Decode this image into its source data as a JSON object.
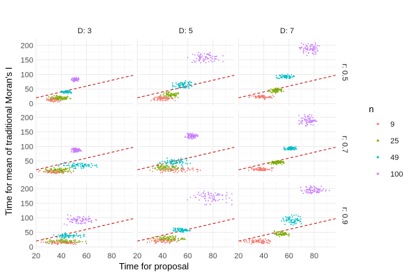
{
  "chart_data": {
    "type": "scatter",
    "title": "",
    "xlabel": "Time for proposal",
    "ylabel": "Time for mean of traditional Moran's I",
    "xlim": [
      20,
      97
    ],
    "ylim": [
      -8,
      222
    ],
    "x_ticks": [
      "20",
      "40",
      "60",
      "80"
    ],
    "y_ticks": [
      "0",
      "50",
      "100",
      "150",
      "200"
    ],
    "grid": true,
    "facet_cols": [
      "D: 3",
      "D: 5",
      "D: 7"
    ],
    "facet_rows": [
      "r: 0.5",
      "r: 0.7",
      "r: 0.9"
    ],
    "reference_line": {
      "style": "dashed",
      "color": "#cc0000",
      "intercept": 0,
      "slope": 1
    },
    "legend": {
      "title": "n",
      "position": "right",
      "entries": [
        {
          "label": "9",
          "color": "#f8766d"
        },
        {
          "label": "25",
          "color": "#7cae00"
        },
        {
          "label": "49",
          "color": "#00bfc4"
        },
        {
          "label": "100",
          "color": "#c77cff"
        }
      ]
    },
    "panels": [
      {
        "strip": "D: 3",
        "row_strip": "r: 0.5",
        "clusters": [
          {
            "n": "9",
            "x": [
              28,
              42
            ],
            "y": [
              5,
              22
            ]
          },
          {
            "n": "25",
            "x": [
              30,
              48
            ],
            "y": [
              10,
              28
            ]
          },
          {
            "n": "49",
            "x": [
              40,
              48
            ],
            "y": [
              35,
              45
            ]
          },
          {
            "n": "100",
            "x": [
              48,
              54
            ],
            "y": [
              75,
              90
            ]
          }
        ]
      },
      {
        "strip": "D: 5",
        "row_strip": "r: 0.5",
        "clusters": [
          {
            "n": "9",
            "x": [
              30,
              50
            ],
            "y": [
              10,
              25
            ]
          },
          {
            "n": "25",
            "x": [
              38,
              55
            ],
            "y": [
              18,
              40
            ]
          },
          {
            "n": "49",
            "x": [
              48,
              66
            ],
            "y": [
              50,
              78
            ]
          },
          {
            "n": "100",
            "x": [
              60,
              88
            ],
            "y": [
              140,
              175
            ]
          }
        ]
      },
      {
        "strip": "D: 7",
        "row_strip": "r: 0.5",
        "clusters": [
          {
            "n": "9",
            "x": [
              28,
              48
            ],
            "y": [
              15,
              30
            ]
          },
          {
            "n": "25",
            "x": [
              44,
              56
            ],
            "y": [
              35,
              55
            ]
          },
          {
            "n": "49",
            "x": [
              50,
              64
            ],
            "y": [
              85,
              100
            ]
          },
          {
            "n": "100",
            "x": [
              68,
              84
            ],
            "y": [
              165,
              210
            ]
          }
        ]
      },
      {
        "strip": "D: 3",
        "row_strip": "r: 0.7",
        "clusters": [
          {
            "n": "9",
            "x": [
              22,
              48
            ],
            "y": [
              5,
              20
            ]
          },
          {
            "n": "25",
            "x": [
              26,
              50
            ],
            "y": [
              10,
              28
            ]
          },
          {
            "n": "49",
            "x": [
              38,
              72
            ],
            "y": [
              25,
              45
            ]
          },
          {
            "n": "100",
            "x": [
              48,
              56
            ],
            "y": [
              80,
              95
            ]
          }
        ]
      },
      {
        "strip": "D: 5",
        "row_strip": "r: 0.7",
        "clusters": [
          {
            "n": "9",
            "x": [
              30,
              70
            ],
            "y": [
              10,
              30
            ]
          },
          {
            "n": "25",
            "x": [
              30,
              55
            ],
            "y": [
              15,
              40
            ]
          },
          {
            "n": "49",
            "x": [
              38,
              62
            ],
            "y": [
              30,
              60
            ]
          },
          {
            "n": "100",
            "x": [
              58,
              68
            ],
            "y": [
              125,
              145
            ]
          }
        ]
      },
      {
        "strip": "D: 7",
        "row_strip": "r: 0.7",
        "clusters": [
          {
            "n": "9",
            "x": [
              28,
              48
            ],
            "y": [
              15,
              30
            ]
          },
          {
            "n": "25",
            "x": [
              44,
              56
            ],
            "y": [
              38,
              52
            ]
          },
          {
            "n": "49",
            "x": [
              56,
              66
            ],
            "y": [
              85,
              100
            ]
          },
          {
            "n": "100",
            "x": [
              68,
              82
            ],
            "y": [
              170,
              210
            ]
          }
        ]
      },
      {
        "strip": "D: 3",
        "row_strip": "r: 0.9",
        "clusters": [
          {
            "n": "9",
            "x": [
              24,
              58
            ],
            "y": [
              8,
              22
            ]
          },
          {
            "n": "25",
            "x": [
              26,
              60
            ],
            "y": [
              12,
              28
            ]
          },
          {
            "n": "49",
            "x": [
              34,
              58
            ],
            "y": [
              30,
              48
            ]
          },
          {
            "n": "100",
            "x": [
              40,
              68
            ],
            "y": [
              75,
              110
            ]
          }
        ]
      },
      {
        "strip": "D: 5",
        "row_strip": "r: 0.9",
        "clusters": [
          {
            "n": "9",
            "x": [
              28,
              52
            ],
            "y": [
              12,
              32
            ]
          },
          {
            "n": "25",
            "x": [
              32,
              58
            ],
            "y": [
              18,
              40
            ]
          },
          {
            "n": "49",
            "x": [
              48,
              62
            ],
            "y": [
              50,
              65
            ]
          },
          {
            "n": "100",
            "x": [
              58,
              95
            ],
            "y": [
              145,
              200
            ]
          }
        ]
      },
      {
        "strip": "D: 7",
        "row_strip": "r: 0.9",
        "clusters": [
          {
            "n": "9",
            "x": [
              22,
              48
            ],
            "y": [
              10,
              28
            ]
          },
          {
            "n": "25",
            "x": [
              48,
              60
            ],
            "y": [
              35,
              55
            ]
          },
          {
            "n": "49",
            "x": [
              54,
              72
            ],
            "y": [
              75,
              110
            ]
          },
          {
            "n": "100",
            "x": [
              68,
              92
            ],
            "y": [
              180,
              210
            ]
          }
        ]
      }
    ]
  }
}
